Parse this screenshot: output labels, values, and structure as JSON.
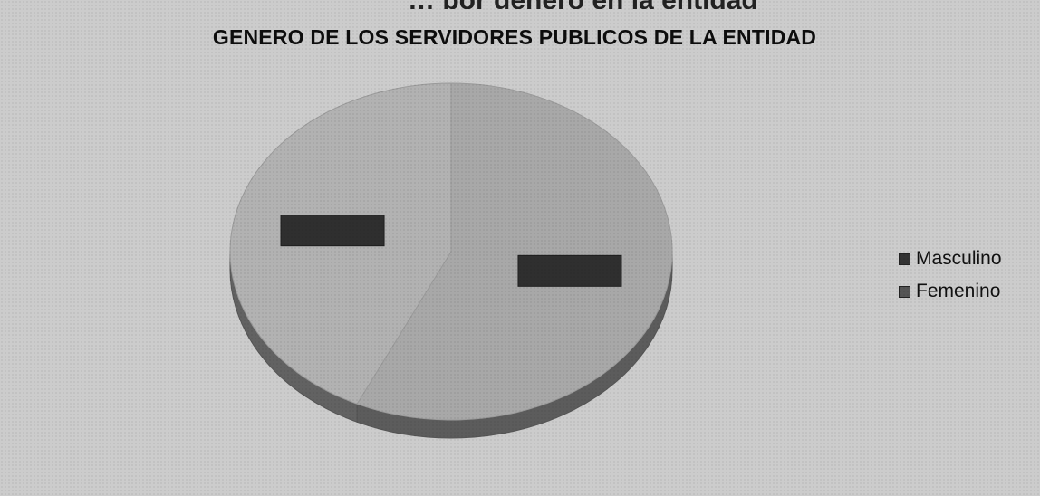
{
  "header": {
    "cut_text_prefix": "…",
    "cut_text_mid": "por género",
    "cut_text_end": " en la entidad"
  },
  "chart_data": {
    "type": "pie",
    "title": "GENERO DE LOS SERVIDORES PUBLICOS DE LA ENTIDAD",
    "legend_position": "right",
    "categories": [
      "Masculino",
      "Femenino"
    ],
    "values": [
      57,
      43
    ],
    "colors": [
      "#a8a8a8",
      "#b2b2b2"
    ],
    "data_labels": [
      "",
      ""
    ],
    "label_box_color": "#2f2f2f"
  }
}
